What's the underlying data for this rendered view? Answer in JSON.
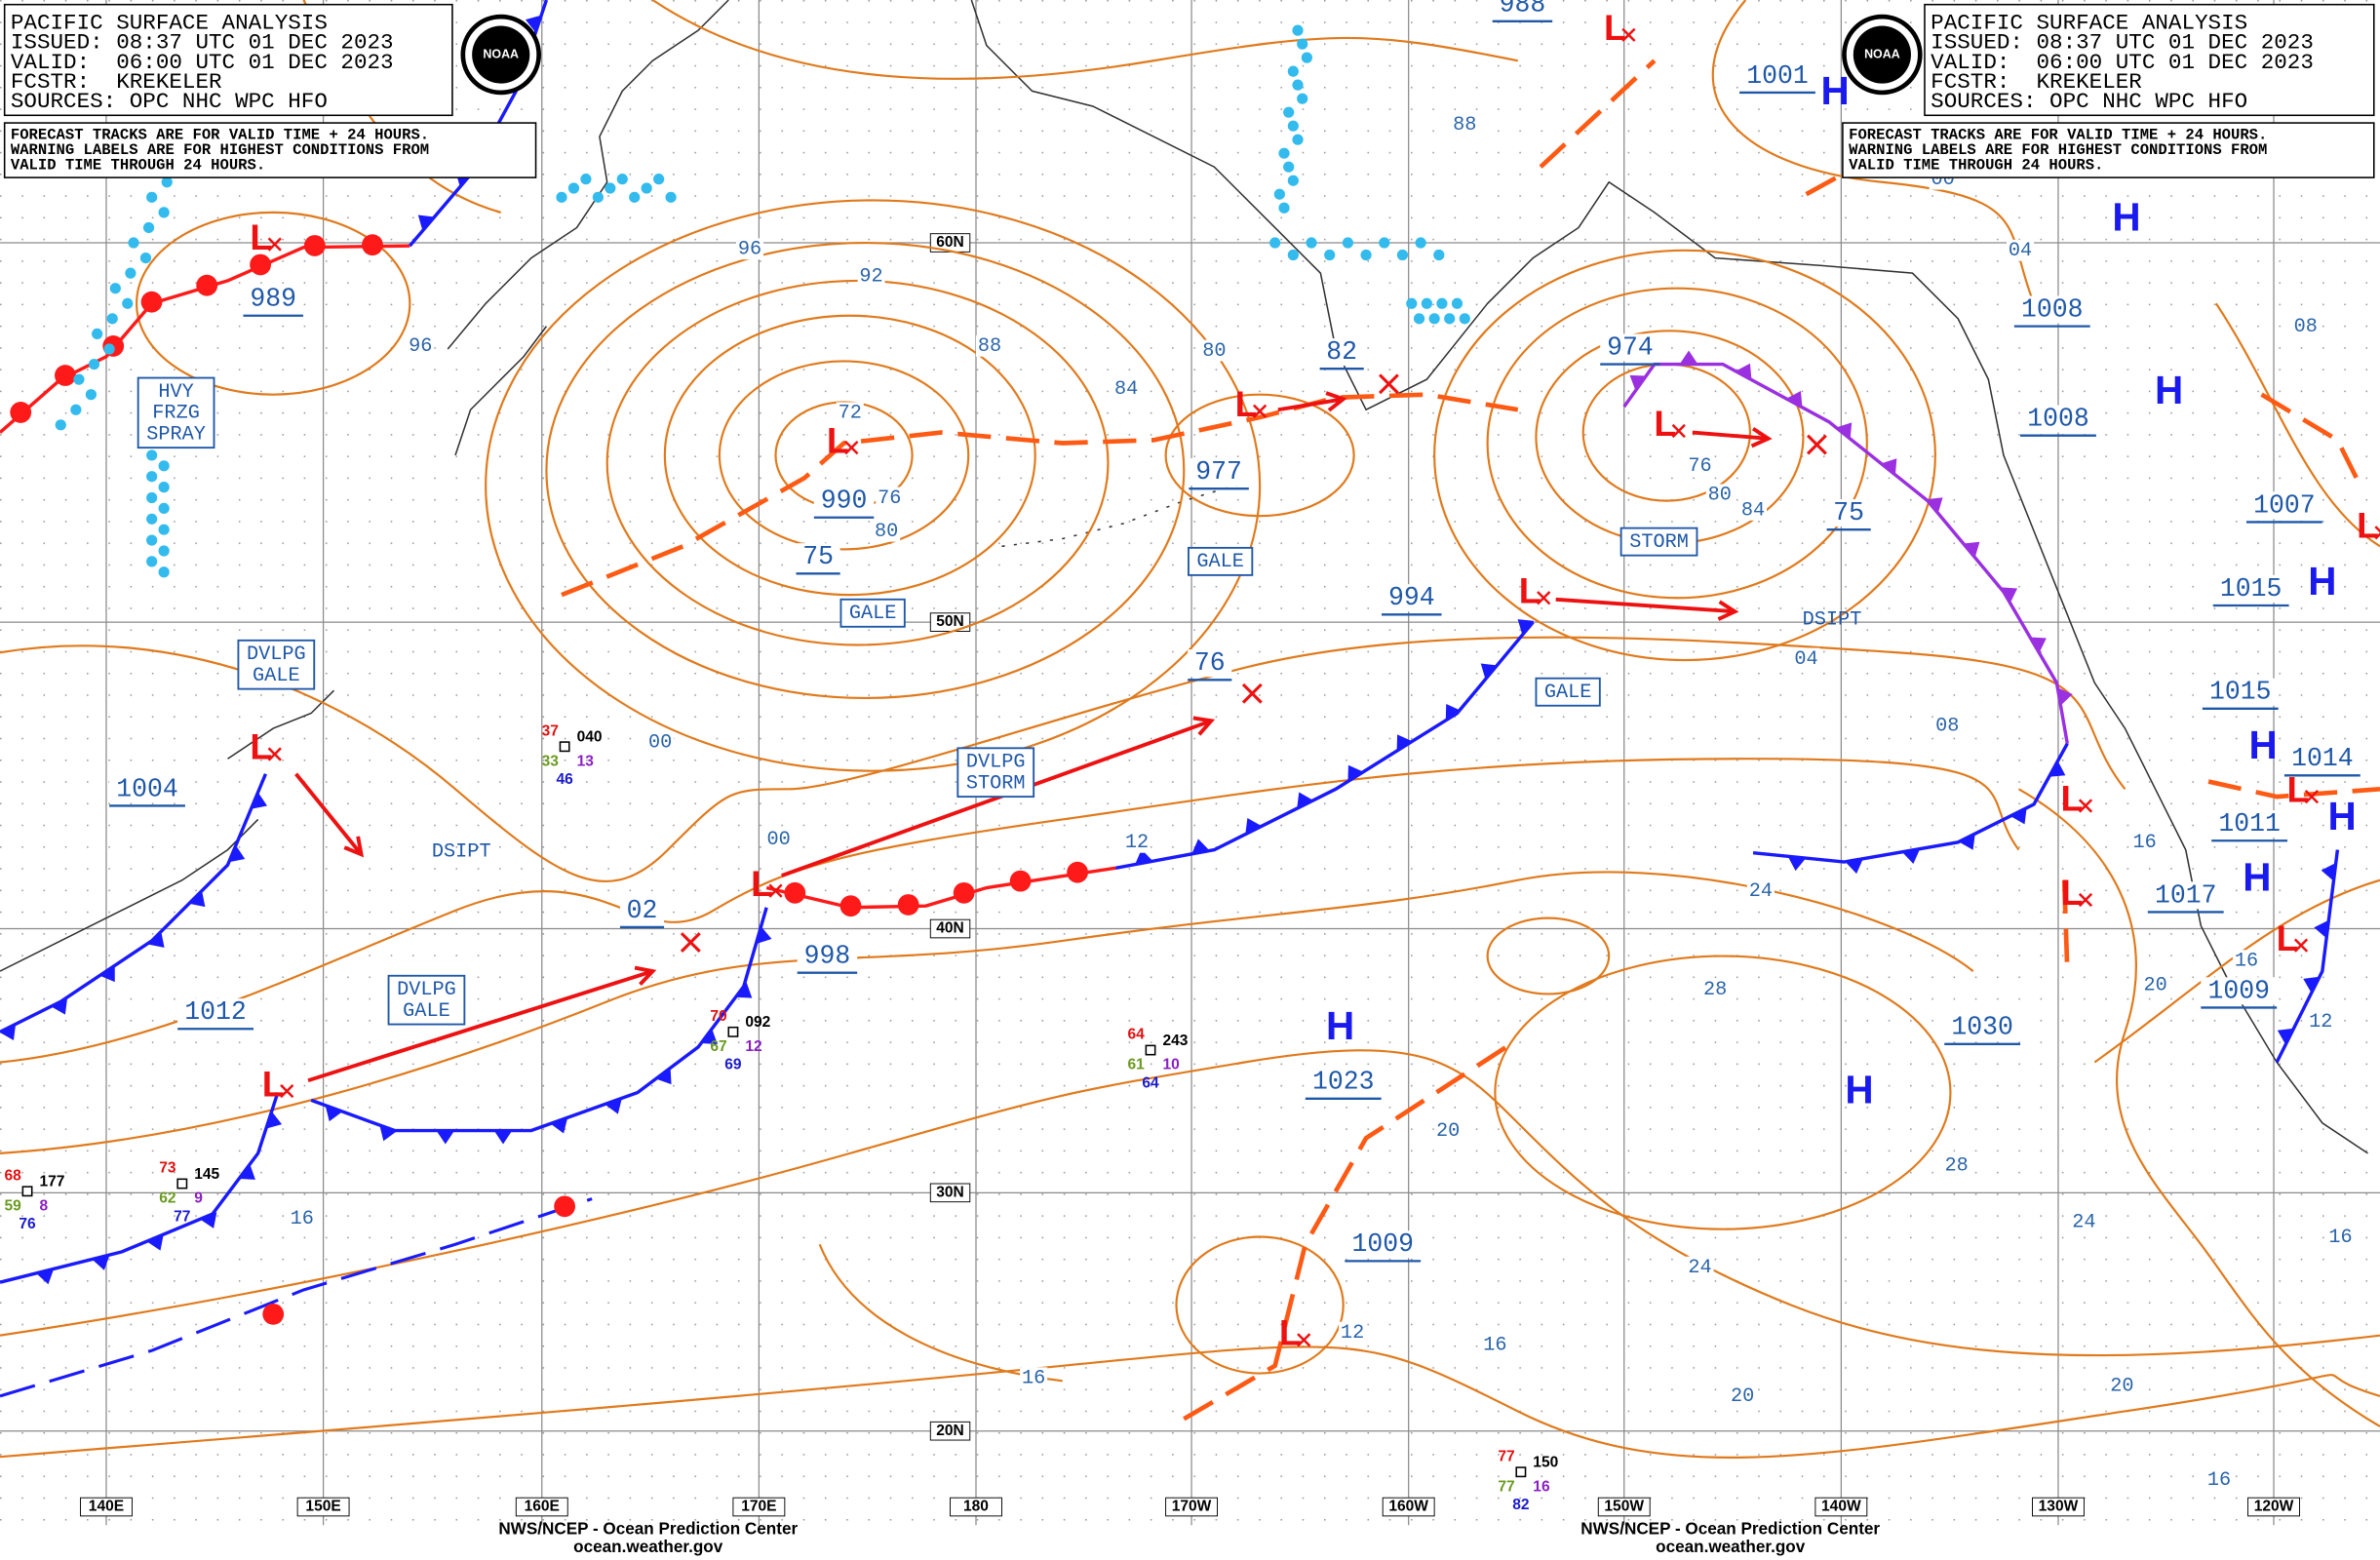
{
  "header": {
    "title": "PACIFIC SURFACE ANALYSIS",
    "issued": "ISSUED: 08:37 UTC 01 DEC 2023",
    "valid": "VALID:  06:00 UTC 01 DEC 2023",
    "forecaster": "FCSTR:  KREKELER",
    "sources": "SOURCES: OPC NHC WPC HFO",
    "note": [
      "FORECAST TRACKS ARE FOR VALID TIME + 24 HOURS.",
      "WARNING LABELS ARE FOR HIGHEST CONDITIONS FROM",
      "VALID TIME THROUGH 24 HOURS."
    ]
  },
  "logo": "NOAA",
  "footer": {
    "agency": "NWS/NCEP - Ocean Prediction Center",
    "site": "ocean.weather.gov"
  },
  "latitudes": [
    "60N",
    "50N",
    "40N",
    "30N",
    "20N"
  ],
  "longitudes": [
    "140E",
    "150E",
    "160E",
    "170E",
    "180",
    "170W",
    "160W",
    "150W",
    "140W",
    "130W",
    "120W"
  ],
  "pressure_labels": [
    "989",
    "1004",
    "1012",
    "02",
    "998",
    "75",
    "977",
    "82",
    "994",
    "76",
    "974",
    "1001",
    "988",
    "75",
    "1008",
    "1008",
    "1007",
    "1015",
    "1015",
    "1014",
    "1011",
    "1017",
    "1009",
    "1030",
    "1023",
    "1009",
    "990"
  ],
  "isobar_labels": [
    "96",
    "92",
    "88",
    "84",
    "80",
    "72",
    "76",
    "80",
    "88",
    "96",
    "00",
    "00",
    "12",
    "04",
    "08",
    "16",
    "24",
    "28",
    "20",
    "12",
    "28",
    "24",
    "20",
    "24",
    "20",
    "20",
    "16",
    "16",
    "16",
    "16",
    "12",
    "16",
    "76",
    "80",
    "84",
    "00",
    "04",
    "08",
    "16"
  ],
  "warnings": [
    [
      "HVY",
      "FRZG",
      "SPRAY"
    ],
    [
      "DVLPG",
      "GALE"
    ],
    [
      "DVLPG",
      "GALE"
    ],
    [
      "GALE"
    ],
    [
      "GALE"
    ],
    [
      "DVLPG",
      "STORM"
    ],
    [
      "STORM"
    ],
    [
      "GALE"
    ]
  ],
  "dissipating": "DSIPT",
  "high_symbol": "H",
  "low_symbol": "L",
  "stations": [
    [
      "040",
      "37",
      "33",
      "13",
      "46"
    ],
    [
      "092",
      "70",
      "67",
      "12",
      "69"
    ],
    [
      "243",
      "64",
      "61",
      "10",
      "64"
    ],
    [
      "177",
      "68",
      "59",
      "8",
      "76"
    ],
    [
      "145",
      "73",
      "62",
      "9",
      "77"
    ],
    [
      "150",
      "77",
      "77",
      "16",
      "82"
    ]
  ]
}
